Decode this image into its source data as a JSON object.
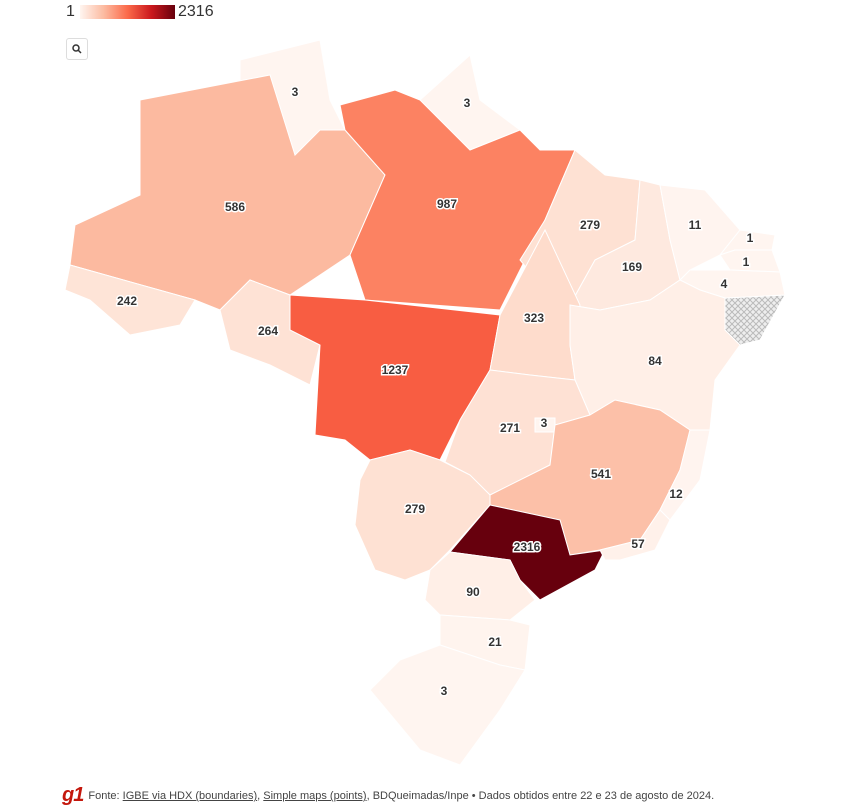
{
  "legend": {
    "min": 1,
    "max": 2316
  },
  "map": {
    "values": [
      3,
      3,
      586,
      987,
      279,
      169,
      11,
      1,
      1,
      4,
      242,
      264,
      1237,
      323,
      84,
      271,
      3,
      541,
      12,
      279,
      2316,
      57,
      90,
      21,
      3
    ]
  },
  "footer": {
    "prefix": "Fonte:",
    "link1": "IGBE via HDX (boundaries)",
    "link2": "Simple maps (points)",
    "suffix": ", BDQueimadas/Inpe • Dados obtidos entre 22 e 23 de agosto de 2024."
  }
}
